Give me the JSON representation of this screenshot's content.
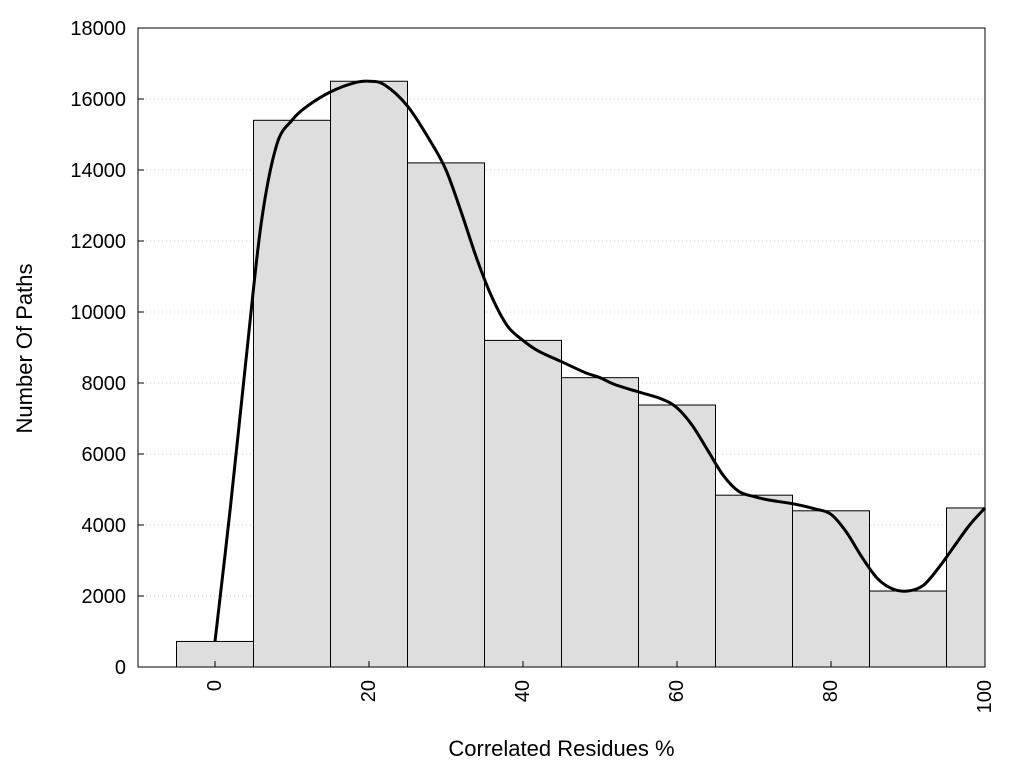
{
  "chart_data": {
    "type": "bar",
    "title": "",
    "xlabel": "Correlated Residues %",
    "ylabel": "Number Of Paths",
    "xlim": [
      -10,
      100
    ],
    "ylim": [
      0,
      18000
    ],
    "yticks": [
      0,
      2000,
      4000,
      6000,
      8000,
      10000,
      12000,
      14000,
      16000,
      18000
    ],
    "xticks": [
      0,
      20,
      40,
      60,
      80,
      100
    ],
    "grid": "horizontal-dotted",
    "legend": "none",
    "bar_width": 10,
    "bars": {
      "x": [
        0,
        10,
        20,
        30,
        40,
        50,
        60,
        70,
        80,
        90,
        100
      ],
      "values": [
        720,
        15400,
        16500,
        14200,
        9200,
        8150,
        7380,
        4840,
        4400,
        2140,
        4480
      ]
    },
    "series": [
      {
        "type": "line",
        "x": [
          0,
          2,
          4,
          6,
          8,
          10,
          12,
          15,
          18,
          20,
          22,
          25,
          28,
          30,
          32,
          34,
          36,
          38,
          40,
          42,
          45,
          48,
          50,
          52,
          55,
          58,
          60,
          62,
          64,
          66,
          68,
          70,
          72,
          75,
          78,
          80,
          82,
          84,
          86,
          88,
          90,
          92,
          94,
          96,
          98,
          100
        ],
        "values": [
          720,
          4500,
          8600,
          12500,
          14700,
          15400,
          15800,
          16200,
          16450,
          16500,
          16400,
          15800,
          14800,
          14000,
          12800,
          11500,
          10400,
          9600,
          9200,
          8900,
          8600,
          8300,
          8150,
          7950,
          7750,
          7550,
          7300,
          6800,
          6100,
          5400,
          4950,
          4800,
          4700,
          4600,
          4450,
          4300,
          3800,
          3100,
          2500,
          2200,
          2140,
          2300,
          2800,
          3400,
          4000,
          4480
        ]
      }
    ],
    "colors": {
      "bar_fill": "#dedede",
      "bar_stroke": "#000000",
      "line": "#000000",
      "grid": "#cccccc"
    }
  }
}
